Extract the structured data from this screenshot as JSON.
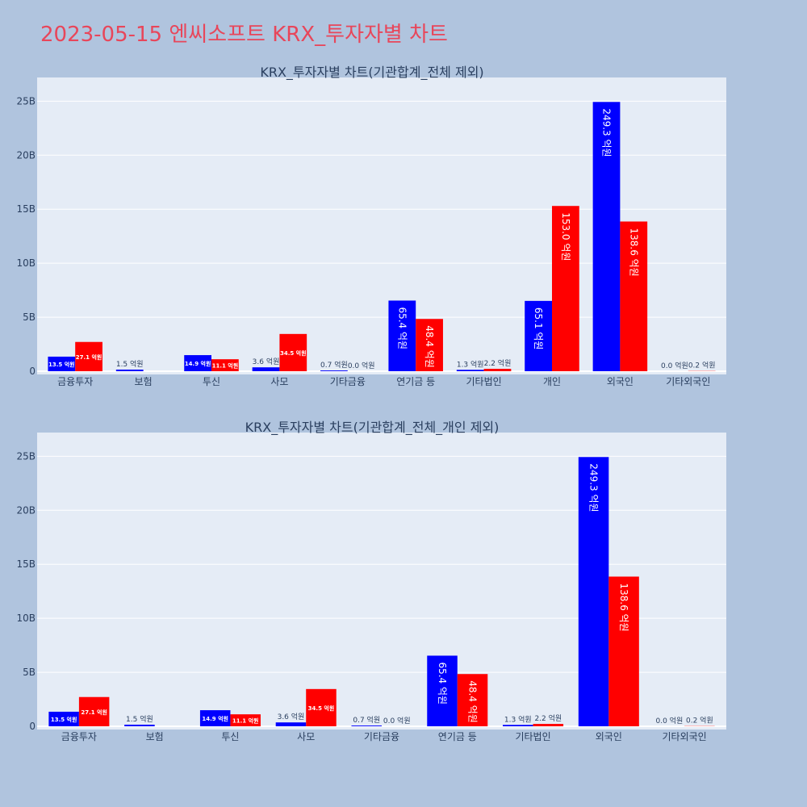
{
  "page_title": "2023-05-15 엔씨소프트 KRX_투자자별 차트",
  "colors": {
    "series_1": "#0000ff",
    "series_2": "#ff0000",
    "plot_bg": "#e5ecf6",
    "page_bg": "#b0c4de"
  },
  "chart_data": [
    {
      "type": "bar",
      "title": "KRX_투자자별 차트(기관합계_전체 제외)",
      "categories": [
        "금융투자",
        "보험",
        "투신",
        "사모",
        "기타금융",
        "연기금 등",
        "기타법인",
        "개인",
        "외국인",
        "기타외국인"
      ],
      "y_ticks": [
        "0",
        "5B",
        "10B",
        "15B",
        "20B",
        "25B"
      ],
      "ylim": [
        0,
        26000000000
      ],
      "grid": true,
      "series": [
        {
          "values": [
            1350000000,
            150000000,
            1490000000,
            360000000,
            70000000,
            6540000000,
            130000000,
            6510000000,
            24930000000,
            0
          ],
          "labels": [
            "13.5 억원",
            "1.5 억원",
            "14.9 억원",
            "3.6 억원",
            "0.7 억원",
            "65.4 억원",
            "1.3 억원",
            "65.1 억원",
            "249.3 억원",
            "0.0 억원"
          ]
        },
        {
          "values": [
            2710000000,
            0,
            1110000000,
            3450000000,
            0,
            4840000000,
            220000000,
            15300000000,
            13860000000,
            20000000
          ],
          "labels": [
            "27.1 억원",
            "",
            "11.1 억원",
            "34.5 억원",
            "0.0 억원",
            "48.4 억원",
            "2.2 억원",
            "153.0 억원",
            "138.6 억원",
            "0.2 억원"
          ]
        }
      ]
    },
    {
      "type": "bar",
      "title": "KRX_투자자별 차트(기관합계_전체_개인 제외)",
      "categories": [
        "금융투자",
        "보험",
        "투신",
        "사모",
        "기타금융",
        "연기금 등",
        "기타법인",
        "외국인",
        "기타외국인"
      ],
      "y_ticks": [
        "0",
        "5B",
        "10B",
        "15B",
        "20B",
        "25B"
      ],
      "ylim": [
        0,
        26000000000
      ],
      "grid": true,
      "series": [
        {
          "values": [
            1350000000,
            150000000,
            1490000000,
            360000000,
            70000000,
            6540000000,
            130000000,
            24930000000,
            0
          ],
          "labels": [
            "13.5 억원",
            "1.5 억원",
            "14.9 억원",
            "3.6 억원",
            "0.7 억원",
            "65.4 억원",
            "1.3 억원",
            "249.3 억원",
            "0.0 억원"
          ]
        },
        {
          "values": [
            2710000000,
            0,
            1110000000,
            3450000000,
            0,
            4840000000,
            220000000,
            13860000000,
            20000000
          ],
          "labels": [
            "27.1 억원",
            "",
            "11.1 억원",
            "34.5 억원",
            "0.0 억원",
            "48.4 억원",
            "2.2 억원",
            "138.6 억원",
            "0.2 억원"
          ]
        }
      ]
    }
  ]
}
